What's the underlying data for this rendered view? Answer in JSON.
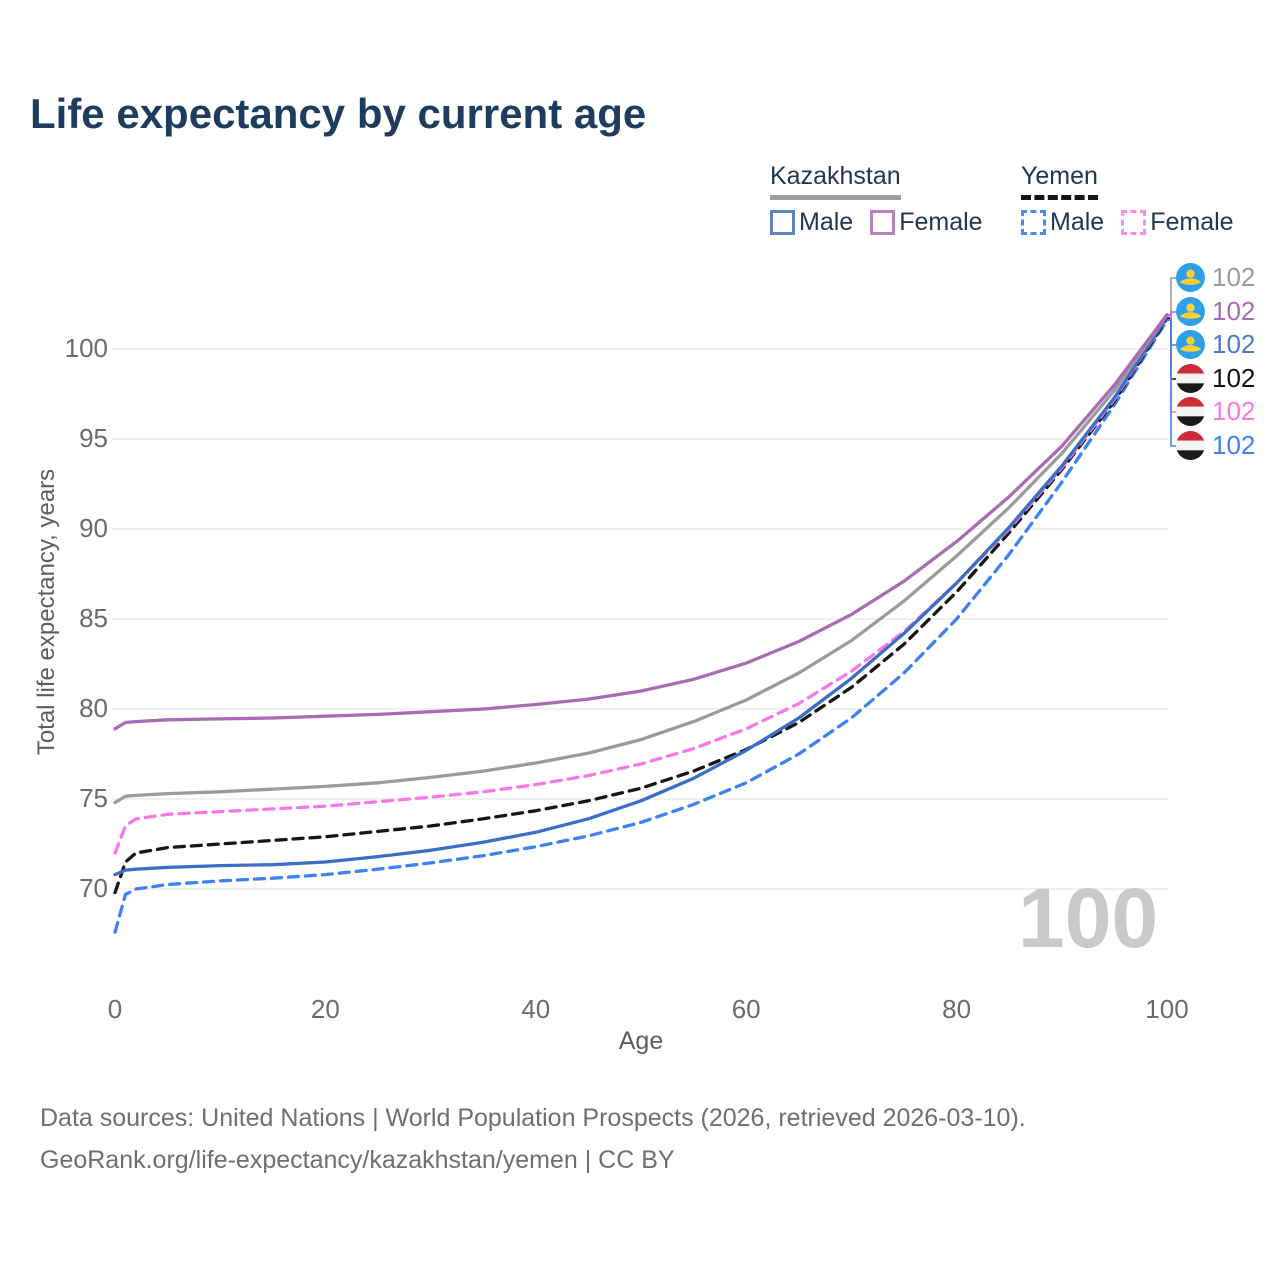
{
  "title": "Life expectancy by current age",
  "watermark": "100",
  "legend": {
    "groups": [
      {
        "id": "kazakhstan",
        "label": "Kazakhstan",
        "line_style": "solid",
        "underline_color": "#9e9e9e",
        "entries": [
          {
            "label": "Male",
            "color": "#5b84c4"
          },
          {
            "label": "Female",
            "color": "#b583bb"
          }
        ]
      },
      {
        "id": "yemen",
        "label": "Yemen",
        "line_style": "dashed",
        "underline_color": "#161616",
        "entries": [
          {
            "label": "Male",
            "color": "#4a8cf2"
          },
          {
            "label": "Female",
            "color": "#fc8ae8"
          }
        ]
      }
    ]
  },
  "footer": {
    "line1": "Data sources: United Nations | World Population Prospects (2026, retrieved 2026-03-10).",
    "line2": "GeoRank.org/life-expectancy/kazakhstan/yemen | CC BY"
  },
  "chart_data": {
    "type": "line",
    "title": "Life expectancy by current age",
    "xlabel": "Age",
    "ylabel": "Total life expectancy, years",
    "xlim": [
      0,
      100
    ],
    "ylim": [
      66,
      103
    ],
    "xticks": [
      0,
      20,
      40,
      60,
      80,
      100
    ],
    "yticks": [
      70,
      75,
      80,
      85,
      90,
      95,
      100
    ],
    "grid": "horizontal-only",
    "legend_position": "top-right",
    "x": [
      0,
      1,
      2,
      5,
      10,
      15,
      20,
      25,
      30,
      35,
      40,
      45,
      50,
      55,
      60,
      65,
      70,
      75,
      80,
      85,
      90,
      95,
      100
    ],
    "series": [
      {
        "id": "kazakhstan-total",
        "name": "Kazakhstan (both sexes)",
        "country": "Kazakhstan",
        "dashed": false,
        "color": "#9b9b9b",
        "values": [
          74.8,
          75.15,
          75.2,
          75.3,
          75.4,
          75.55,
          75.7,
          75.9,
          76.2,
          76.55,
          77.0,
          77.55,
          78.3,
          79.3,
          80.5,
          82.0,
          83.8,
          86.0,
          88.5,
          91.2,
          94.2,
          97.7,
          101.9
        ]
      },
      {
        "id": "kazakhstan-female",
        "name": "Kazakhstan Female",
        "country": "Kazakhstan",
        "dashed": false,
        "color": "#a96bb3",
        "values": [
          78.9,
          79.25,
          79.3,
          79.4,
          79.45,
          79.5,
          79.6,
          79.7,
          79.85,
          80.0,
          80.25,
          80.55,
          81.0,
          81.65,
          82.55,
          83.75,
          85.25,
          87.1,
          89.3,
          91.8,
          94.6,
          98.0,
          101.9
        ]
      },
      {
        "id": "kazakhstan-male",
        "name": "Kazakhstan Male",
        "country": "Kazakhstan",
        "dashed": false,
        "color": "#3d6ec5",
        "values": [
          70.8,
          71.05,
          71.1,
          71.2,
          71.3,
          71.35,
          71.5,
          71.8,
          72.15,
          72.6,
          73.15,
          73.9,
          74.9,
          76.15,
          77.7,
          79.5,
          81.7,
          84.2,
          87.0,
          90.1,
          93.5,
          97.3,
          101.8
        ]
      },
      {
        "id": "yemen-total",
        "name": "Yemen (both sexes)",
        "country": "Yemen",
        "dashed": true,
        "color": "#161616",
        "values": [
          69.8,
          71.5,
          72.0,
          72.3,
          72.5,
          72.7,
          72.9,
          73.2,
          73.5,
          73.9,
          74.35,
          74.9,
          75.6,
          76.55,
          77.75,
          79.25,
          81.2,
          83.6,
          86.5,
          89.8,
          93.3,
          97.1,
          101.7
        ]
      },
      {
        "id": "yemen-female",
        "name": "Yemen Female",
        "country": "Yemen",
        "dashed": true,
        "color": "#f978e6",
        "values": [
          72.0,
          73.5,
          73.9,
          74.15,
          74.3,
          74.45,
          74.6,
          74.85,
          75.1,
          75.4,
          75.8,
          76.3,
          76.95,
          77.8,
          78.9,
          80.3,
          82.1,
          84.3,
          87.0,
          90.0,
          93.4,
          97.2,
          101.8
        ]
      },
      {
        "id": "yemen-male",
        "name": "Yemen Male",
        "country": "Yemen",
        "dashed": true,
        "color": "#3e82f2",
        "values": [
          67.6,
          69.7,
          70.0,
          70.25,
          70.45,
          70.6,
          70.8,
          71.1,
          71.45,
          71.85,
          72.35,
          72.95,
          73.7,
          74.7,
          75.9,
          77.5,
          79.5,
          82.0,
          85.0,
          88.6,
          92.6,
          96.9,
          101.6
        ]
      }
    ],
    "end_labels": [
      {
        "series": "kazakhstan-total",
        "flag": "kazakhstan",
        "value": "102",
        "color": "#9b9b9b"
      },
      {
        "series": "kazakhstan-female",
        "flag": "kazakhstan",
        "value": "102",
        "color": "#a96bb3"
      },
      {
        "series": "kazakhstan-male",
        "flag": "kazakhstan",
        "value": "102",
        "color": "#4a79cd"
      },
      {
        "series": "yemen-total",
        "flag": "yemen",
        "value": "102",
        "color": "#111111"
      },
      {
        "series": "yemen-female",
        "flag": "yemen",
        "value": "102",
        "color": "#f978e6"
      },
      {
        "series": "yemen-male",
        "flag": "yemen",
        "value": "102",
        "color": "#3e82f2"
      }
    ]
  }
}
